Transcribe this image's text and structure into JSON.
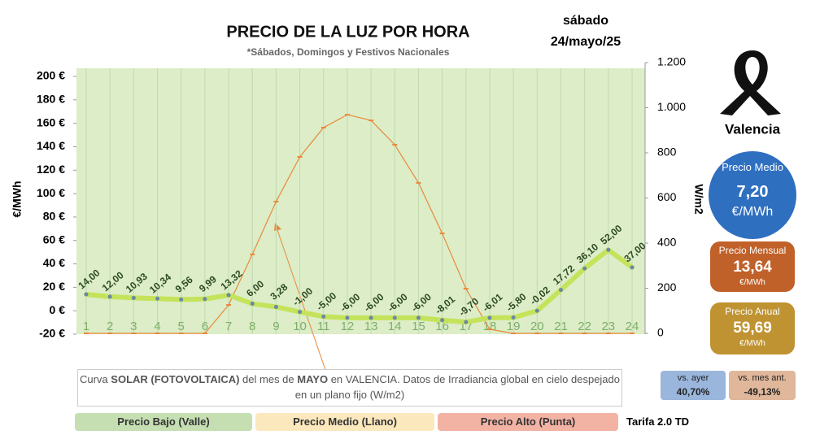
{
  "chart_data": {
    "type": "line",
    "title": "PRECIO DE LA LUZ POR HORA",
    "subtitle": "*Sábados, Domingos y Festivos Nacionales",
    "date": [
      "sábado",
      "24/mayo/25"
    ],
    "ylabel": "€/MWh",
    "y2label": "W/m2",
    "categories": [
      "1",
      "2",
      "3",
      "4",
      "5",
      "6",
      "7",
      "8",
      "9",
      "10",
      "11",
      "12",
      "13",
      "14",
      "15",
      "16",
      "17",
      "18",
      "19",
      "20",
      "21",
      "22",
      "23",
      "24"
    ],
    "series": [
      {
        "color": "#c5e35a",
        "values": [
          14.0,
          12.0,
          10.93,
          10.34,
          9.56,
          9.99,
          13.32,
          6.0,
          3.28,
          -1.0,
          -5.0,
          -6.0,
          -6.0,
          -6.0,
          -6.0,
          -8.01,
          -9.7,
          -6.01,
          -5.8,
          -0.02,
          17.72,
          36.1,
          52.0,
          37.0
        ],
        "value_labels": [
          "14,00",
          "12,00",
          "10,93",
          "10,34",
          "9,56",
          "9,99",
          "13,32",
          "6,00",
          "3,28",
          "-1,00",
          "-5,00",
          "-6,00",
          "-6,00",
          "-6,00",
          "-6,00",
          "-8,01",
          "-9,70",
          "-6,01",
          "-5,80",
          "-0,02",
          "17,72",
          "36,10",
          "52,00",
          "37,00"
        ]
      },
      {
        "color": "#e8893a",
        "axis": "y2",
        "values": [
          0,
          0,
          0,
          0,
          0,
          0,
          126,
          350,
          584,
          782,
          912,
          969,
          944,
          836,
          667,
          443,
          198,
          18,
          0,
          0,
          0,
          0,
          0,
          0
        ]
      }
    ],
    "ylim": [
      -20,
      200
    ],
    "yticks": [
      {
        "value": -20,
        "label": "-20 €"
      },
      {
        "value": 0,
        "label": "0 €"
      },
      {
        "value": 20,
        "label": "20 €"
      },
      {
        "value": 40,
        "label": "40 €"
      },
      {
        "value": 60,
        "label": "60 €"
      },
      {
        "value": 80,
        "label": "80 €"
      },
      {
        "value": 100,
        "label": "100 €"
      },
      {
        "value": 120,
        "label": "120 €"
      },
      {
        "value": 140,
        "label": "140 €"
      },
      {
        "value": 160,
        "label": "160 €"
      },
      {
        "value": 180,
        "label": "180 €"
      },
      {
        "value": 200,
        "label": "200 €"
      }
    ],
    "y2lim": [
      0,
      1200
    ],
    "y2ticks": [
      0,
      200,
      400,
      600,
      800,
      {
        "value": 1000,
        "label": "1.000"
      },
      {
        "value": 1200,
        "label": "1.200"
      }
    ],
    "annotation": [
      "Curva ",
      "SOLAR (FOTOVOLTAICA)",
      " del mes de ",
      "MAYO",
      " en VALENCIA. Datos de Irradiancia global en cielo despejado en un plano fijo (W/m2)"
    ],
    "city": "Valencia",
    "medio": {
      "label": "Precio Medio",
      "value": "7,20",
      "unit": "€/MWh"
    },
    "mensual": {
      "label": "Precio Mensual",
      "value": "13,64",
      "unit": "€/MWh"
    },
    "anual": {
      "label": "Precio Anual",
      "value": "59,69",
      "unit": "€/MWh"
    },
    "ayer": {
      "label": "vs. ayer",
      "value": "40,70%"
    },
    "mes_ant": {
      "label": "vs. mes ant.",
      "value": "-49,13%"
    },
    "legend": [
      "Precio Bajo (Valle)",
      "Precio Medio (Llano)",
      "Precio Alto (Punta)"
    ],
    "tarifa": "Tarifa 2.0 TD"
  }
}
